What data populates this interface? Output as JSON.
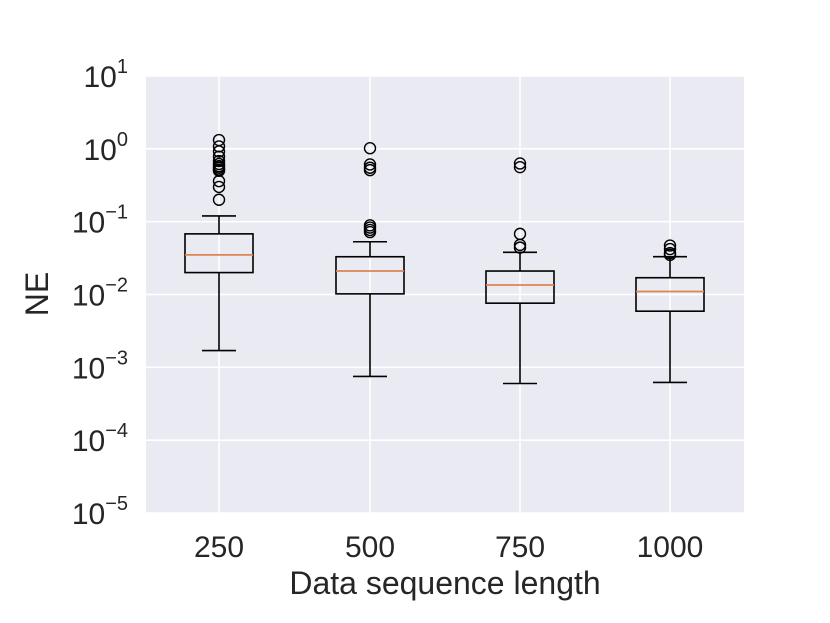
{
  "chart_data": {
    "type": "box",
    "xlabel": "Data sequence length",
    "ylabel": "NE",
    "yscale": "log",
    "ylim": [
      1e-05,
      10
    ],
    "grid": true,
    "y_ticks": [
      {
        "value": 1e-05,
        "base": "10",
        "exp": "−5"
      },
      {
        "value": 0.0001,
        "base": "10",
        "exp": "−4"
      },
      {
        "value": 0.001,
        "base": "10",
        "exp": "−3"
      },
      {
        "value": 0.01,
        "base": "10",
        "exp": "−2"
      },
      {
        "value": 0.1,
        "base": "10",
        "exp": "−1"
      },
      {
        "value": 1,
        "base": "10",
        "exp": "0"
      },
      {
        "value": 10,
        "base": "10",
        "exp": "1"
      }
    ],
    "categories": [
      "250",
      "500",
      "750",
      "1000"
    ],
    "boxes": [
      {
        "category": "250",
        "whisker_low": 0.0017,
        "q1": 0.02,
        "median": 0.035,
        "q3": 0.068,
        "whisker_high": 0.12,
        "outliers": [
          1.32,
          1.08,
          0.92,
          0.78,
          0.68,
          0.62,
          0.58,
          0.55,
          0.52,
          0.5,
          0.36,
          0.3,
          0.2
        ]
      },
      {
        "category": "500",
        "whisker_low": 0.00075,
        "q1": 0.0102,
        "median": 0.021,
        "q3": 0.033,
        "whisker_high": 0.053,
        "outliers": [
          1.02,
          0.61,
          0.55,
          0.51,
          0.089,
          0.083,
          0.077,
          0.072
        ]
      },
      {
        "category": "750",
        "whisker_low": 0.0006,
        "q1": 0.0076,
        "median": 0.0135,
        "q3": 0.021,
        "whisker_high": 0.038,
        "outliers": [
          0.63,
          0.56,
          0.068,
          0.048,
          0.044
        ]
      },
      {
        "category": "1000",
        "whisker_low": 0.00062,
        "q1": 0.0059,
        "median": 0.011,
        "q3": 0.017,
        "whisker_high": 0.033,
        "outliers": [
          0.047,
          0.042,
          0.037,
          0.035
        ]
      }
    ],
    "colors": {
      "plot_bg": "#eaeaf2",
      "grid": "#ffffff",
      "box": "#000000",
      "median": "#dd8452",
      "text": "#262626"
    }
  }
}
